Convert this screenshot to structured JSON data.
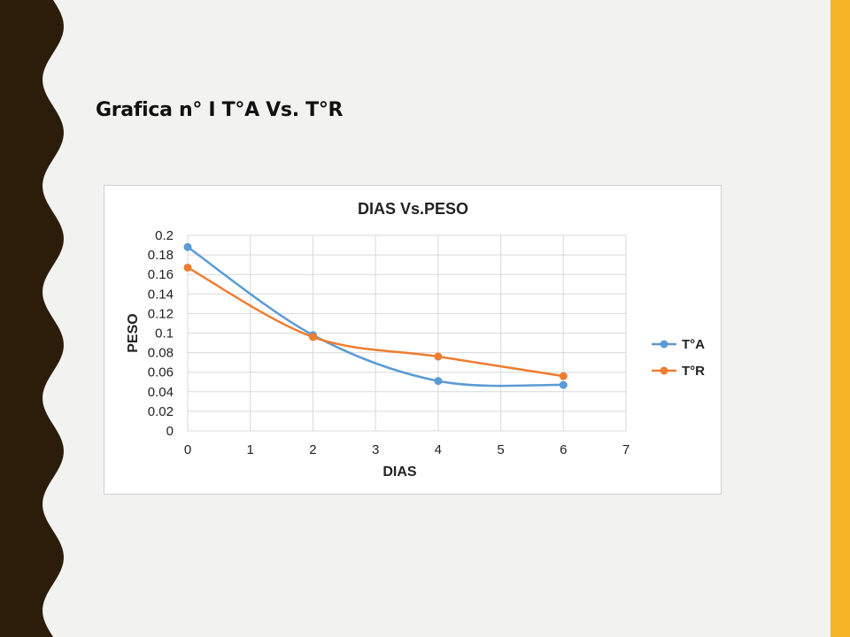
{
  "slide": {
    "title": "Grafica n° I T°A Vs. T°R",
    "colors": {
      "left_decoration": "#2b1d0a",
      "right_bar": "#f5b528",
      "background": "#f2f2f0"
    }
  },
  "chart_data": {
    "type": "line",
    "title": "DIAS Vs.PESO",
    "xlabel": "DIAS",
    "ylabel": "PESO",
    "xlim": [
      0,
      7
    ],
    "ylim": [
      0,
      0.2
    ],
    "x_ticks": [
      "0",
      "1",
      "2",
      "3",
      "4",
      "5",
      "6",
      "7"
    ],
    "y_ticks": [
      "0",
      "0.02",
      "0.04",
      "0.06",
      "0.08",
      "0.1",
      "0.12",
      "0.14",
      "0.16",
      "0.18",
      "0.2"
    ],
    "grid": true,
    "legend_position": "right",
    "smooth": true,
    "series": [
      {
        "name": "T°A",
        "color": "#5b9bd5",
        "x": [
          0,
          2,
          4,
          6
        ],
        "y": [
          0.188,
          0.098,
          0.051,
          0.047
        ]
      },
      {
        "name": "T°R",
        "color": "#ed7d31",
        "x": [
          0,
          2,
          4,
          6
        ],
        "y": [
          0.167,
          0.096,
          0.076,
          0.056
        ]
      }
    ]
  }
}
